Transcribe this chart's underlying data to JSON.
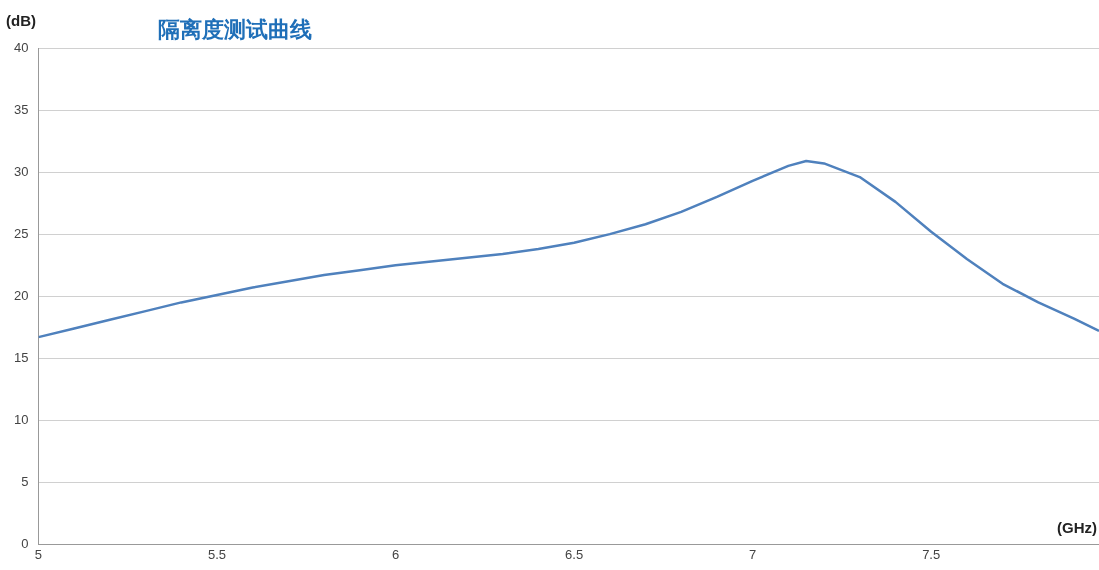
{
  "chart_data": {
    "type": "line",
    "title": "隔离度测试曲线",
    "xlabel": "(GHz)",
    "ylabel": "(dB)",
    "x": [
      5.0,
      5.1,
      5.2,
      5.3,
      5.4,
      5.5,
      5.6,
      5.7,
      5.8,
      5.9,
      6.0,
      6.1,
      6.2,
      6.3,
      6.4,
      6.5,
      6.6,
      6.7,
      6.8,
      6.9,
      7.0,
      7.1,
      7.15,
      7.2,
      7.3,
      7.4,
      7.5,
      7.6,
      7.7,
      7.8,
      7.9,
      7.97
    ],
    "series": [
      {
        "color": "#4f81bd",
        "values": [
          16.7,
          17.4,
          18.1,
          18.8,
          19.5,
          20.1,
          20.7,
          21.2,
          21.7,
          22.1,
          22.5,
          22.8,
          23.1,
          23.4,
          23.8,
          24.3,
          25.0,
          25.8,
          26.8,
          28.0,
          29.3,
          30.5,
          30.9,
          30.7,
          29.6,
          27.6,
          25.2,
          23.0,
          21.0,
          19.5,
          18.2,
          17.2
        ]
      }
    ],
    "xlim": [
      5,
      7.97
    ],
    "xticks": [
      5,
      5.5,
      6,
      6.5,
      7,
      7.5
    ],
    "ylim": [
      0,
      40
    ],
    "yticks": [
      0,
      5,
      10,
      15,
      20,
      25,
      30,
      35,
      40
    ],
    "grid": "y",
    "legend": false,
    "marker": "none",
    "line_style": "solid"
  }
}
